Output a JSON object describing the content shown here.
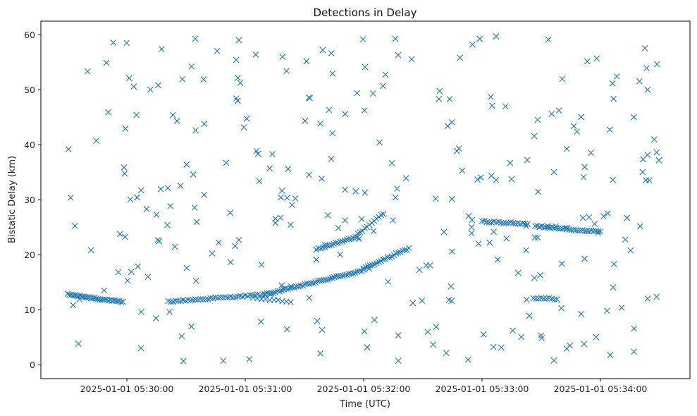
{
  "chart_data": {
    "type": "scatter",
    "title": "Detections in Delay",
    "xlabel": "Time (UTC)",
    "ylabel": "Bistatic Delay (km)",
    "marker": "x",
    "color": "#1f77b4",
    "grid": false,
    "x_ticks": [
      {
        "label": "2025-01-01 05:30:00",
        "value": 30
      },
      {
        "label": "2025-01-01 05:31:00",
        "value": 90
      },
      {
        "label": "2025-01-01 05:32:00",
        "value": 150
      },
      {
        "label": "2025-01-01 05:33:00",
        "value": 210
      },
      {
        "label": "2025-01-01 05:34:00",
        "value": 270
      }
    ],
    "x_range": [
      "2025-01-01 05:29:23",
      "2025-01-01 05:34:41"
    ],
    "y_ticks": [
      0,
      10,
      20,
      30,
      40,
      50,
      60
    ],
    "ylim": [
      -2.5,
      62.5
    ],
    "tracks": [
      {
        "x_start": 0,
        "x_end": 28,
        "y_start": 12.8,
        "y_end": 11.4,
        "n": 32
      },
      {
        "x_start": 51,
        "x_end": 100,
        "y_start": 11.5,
        "y_end": 12.8,
        "n": 40
      },
      {
        "x_start": 100,
        "x_end": 150,
        "y_start": 12.8,
        "y_end": 17.2,
        "n": 48
      },
      {
        "x_start": 150,
        "x_end": 173,
        "y_start": 17.5,
        "y_end": 21.2,
        "n": 22
      },
      {
        "x_start": 126,
        "x_end": 147,
        "y_start": 21.0,
        "y_end": 23.3,
        "n": 20
      },
      {
        "x_start": 147,
        "x_end": 160,
        "y_start": 23.8,
        "y_end": 27.5,
        "n": 12
      },
      {
        "x_start": 210,
        "x_end": 233,
        "y_start": 26.1,
        "y_end": 25.6,
        "n": 20
      },
      {
        "x_start": 237,
        "x_end": 253,
        "y_start": 25.2,
        "y_end": 24.8,
        "n": 16
      },
      {
        "x_start": 253,
        "x_end": 270,
        "y_start": 24.6,
        "y_end": 24.3,
        "n": 16
      },
      {
        "x_start": 94,
        "x_end": 113,
        "y_start": 12.2,
        "y_end": 11.5,
        "n": 10
      },
      {
        "x_start": 236,
        "x_end": 248,
        "y_start": 12.1,
        "y_end": 12.0,
        "n": 10
      }
    ],
    "clutter": {
      "count": 290,
      "x_min": 0,
      "x_max": 300,
      "y_min": 0.5,
      "y_max": 60
    }
  }
}
